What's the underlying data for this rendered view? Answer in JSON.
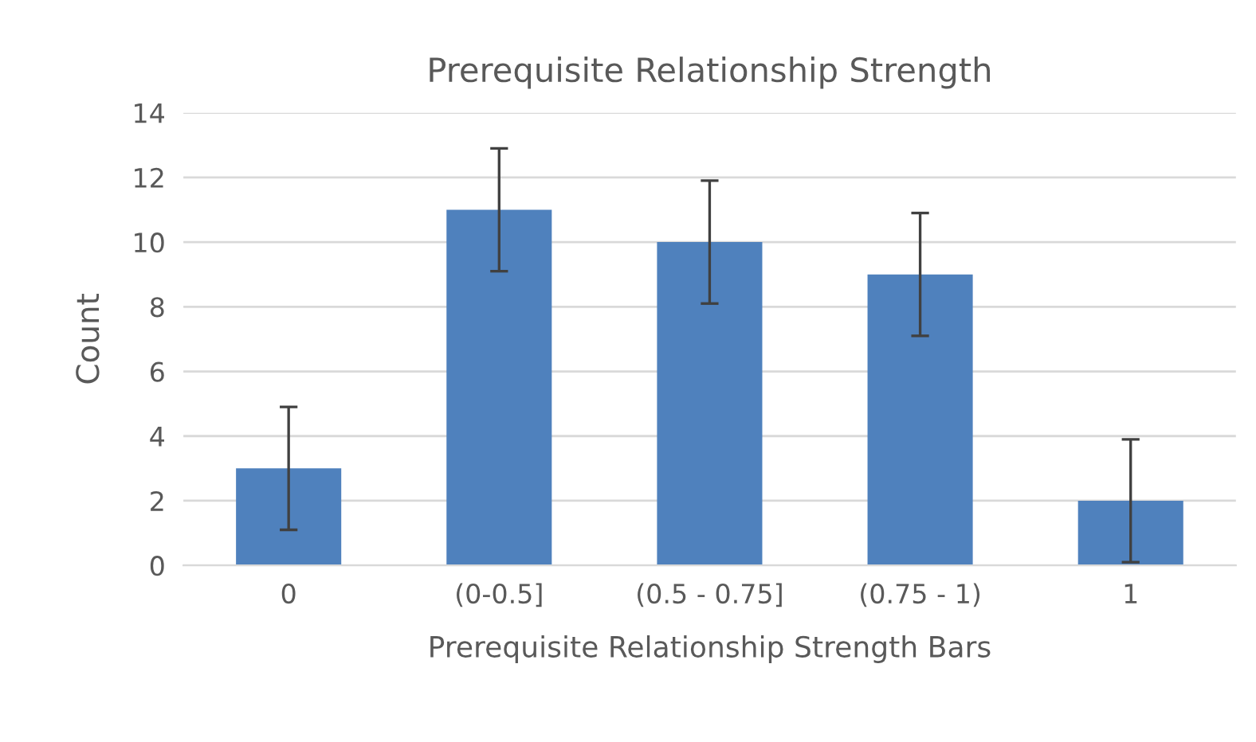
{
  "chart_data": {
    "type": "bar",
    "title": "Prerequisite Relationship Strength",
    "xlabel": "Prerequisite Relationship Strength Bars",
    "ylabel": "Count",
    "categories": [
      "0",
      "(0-0.5]",
      "(0.5 - 0.75]",
      "(0.75 - 1)",
      "1"
    ],
    "values": [
      3,
      11,
      10,
      9,
      2
    ],
    "errors": [
      1.9,
      1.9,
      1.9,
      1.9,
      1.9
    ],
    "color": "#4f81bd",
    "ylim": [
      0,
      14
    ],
    "yticks": [
      0,
      2,
      4,
      6,
      8,
      10,
      12,
      14
    ],
    "grid": "y",
    "legend": false
  }
}
